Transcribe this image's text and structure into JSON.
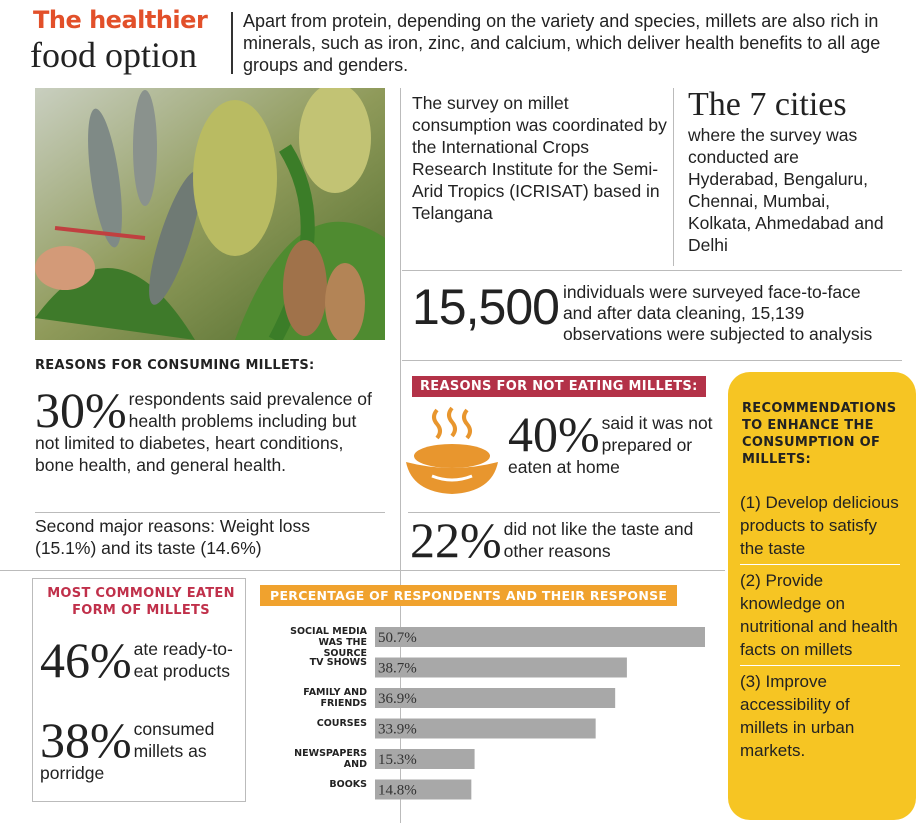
{
  "header": {
    "title_line1": "The healthier",
    "title_line2": "food option",
    "intro": "Apart from protein, depending on the variety and species, millets are also rich in minerals, such as iron, zinc, and calcium, which deliver health benefits to all age groups and genders."
  },
  "survey": {
    "text": "The survey on millet consumption was coordinated by the International Crops Research Institute for the Semi-Arid Tropics (ICRISAT) based in Telangana"
  },
  "cities": {
    "title": "The 7 cities",
    "text": "where the survey was conducted are Hyderabad, Bengaluru, Chennai, Mumbai, Kolkata, Ahmedabad and Delhi"
  },
  "sample": {
    "number": "15,500",
    "text": "individuals were surveyed face-to-face and after data cleaning, 15,139 observations were subjected to analysis"
  },
  "consuming": {
    "heading": "REASONS FOR CONSUMING MILLETS:",
    "stat": "30%",
    "stat_text": "respondents said prevalence of health problems including but not limited to diabetes, heart conditions, bone health, and general health.",
    "second": "Second major reasons: Weight loss (15.1%) and its taste (14.6%)"
  },
  "not_eating": {
    "heading": "REASONS FOR NOT EATING MILLETS:",
    "items": [
      {
        "stat": "40%",
        "text": "said it was not prepared or eaten at home"
      },
      {
        "stat": "22%",
        "text": "did not like the taste and other reasons"
      }
    ]
  },
  "recommendations": {
    "heading": "RECOMMENDATIONS TO ENHANCE THE CONSUMPTION OF MILLETS:",
    "items": [
      "(1) Develop delicious products to satisfy the taste",
      "(2) Provide knowledge on nutritional and health facts on millets",
      "(3) Improve accessibility of millets in urban markets."
    ]
  },
  "common_form": {
    "heading": "MOST COMMONLY EATEN FORM OF MILLETS",
    "items": [
      {
        "stat": "46%",
        "text": "ate ready-to-eat products"
      },
      {
        "stat": "38%",
        "text": "consumed millets as porridge"
      }
    ]
  },
  "chart_data": {
    "type": "bar",
    "orientation": "horizontal",
    "title": "PERCENTAGE OF RESPONDENTS AND THEIR RESPONSE",
    "categories": [
      "SOCIAL MEDIA WAS THE SOURCE",
      "TV SHOWS",
      "FAMILY AND FRIENDS",
      "COURSES",
      "NEWSPAPERS AND",
      "BOOKS"
    ],
    "values": [
      50.7,
      38.7,
      36.9,
      33.9,
      15.3,
      14.8
    ],
    "value_labels": [
      "50.7%",
      "38.7%",
      "36.9%",
      "33.9%",
      "15.3%",
      "14.8%"
    ],
    "color": "#a8a8a8",
    "title_color": "#f0a22e"
  }
}
